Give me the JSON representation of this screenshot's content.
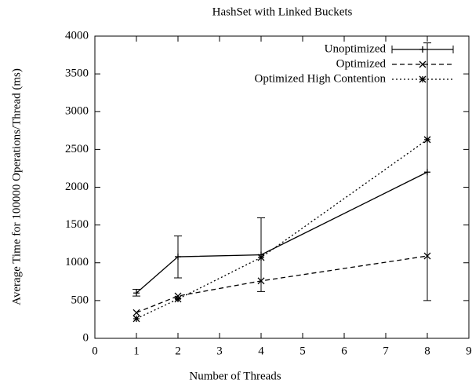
{
  "chart_data": {
    "type": "line",
    "title": "HashSet with Linked Buckets",
    "xlabel": "Number of Threads",
    "ylabel": "Average Time for 100000 Operations/Thread (ms)",
    "x": [
      1,
      2,
      4,
      8
    ],
    "series": [
      {
        "name": "Unoptimized",
        "color": "#000000",
        "dash": "solid",
        "marker": "plus",
        "values": [
          600,
          1080,
          1105,
          2200
        ],
        "lower": [
          560,
          800,
          620,
          500
        ],
        "upper": [
          650,
          1355,
          1595,
          3910
        ]
      },
      {
        "name": "Optimized",
        "color": "#000000",
        "dash": "dashed",
        "marker": "cross",
        "values": [
          340,
          560,
          760,
          1090
        ]
      },
      {
        "name": "Optimized High Contention",
        "color": "#000000",
        "dash": "dotted",
        "marker": "star",
        "values": [
          260,
          520,
          1070,
          2630
        ]
      }
    ],
    "xlim": [
      0,
      9
    ],
    "xticks": [
      0,
      1,
      2,
      3,
      4,
      5,
      6,
      7,
      8,
      9
    ],
    "ylim": [
      0,
      4000
    ],
    "yticks": [
      0,
      500,
      1000,
      1500,
      2000,
      2500,
      3000,
      3500,
      4000
    ],
    "legend": "top-right"
  }
}
